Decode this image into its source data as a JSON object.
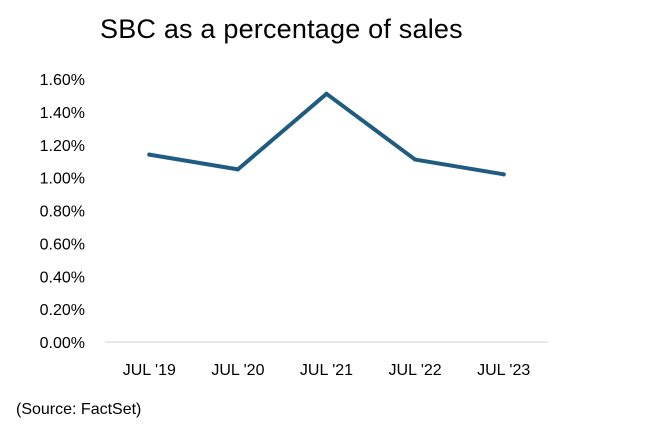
{
  "chart_data": {
    "type": "line",
    "title": "SBC as a percentage of sales",
    "xlabel": "",
    "ylabel": "",
    "categories": [
      "JUL '19",
      "JUL '20",
      "JUL '21",
      "JUL '22",
      "JUL '23"
    ],
    "series": [
      {
        "values": [
          1.14,
          1.05,
          1.51,
          1.11,
          1.02
        ]
      }
    ],
    "ylim": [
      0,
      1.6
    ],
    "y_ticks": [
      0,
      0.2,
      0.4,
      0.6,
      0.8,
      1.0,
      1.2,
      1.4,
      1.6
    ],
    "y_tick_labels": [
      "0.00%",
      "0.20%",
      "0.40%",
      "0.60%",
      "0.80%",
      "1.00%",
      "1.20%",
      "1.40%",
      "1.60%"
    ],
    "grid": false,
    "legend": "none",
    "line_color": "#1F5C80"
  },
  "source_note": "(Source: FactSet)"
}
